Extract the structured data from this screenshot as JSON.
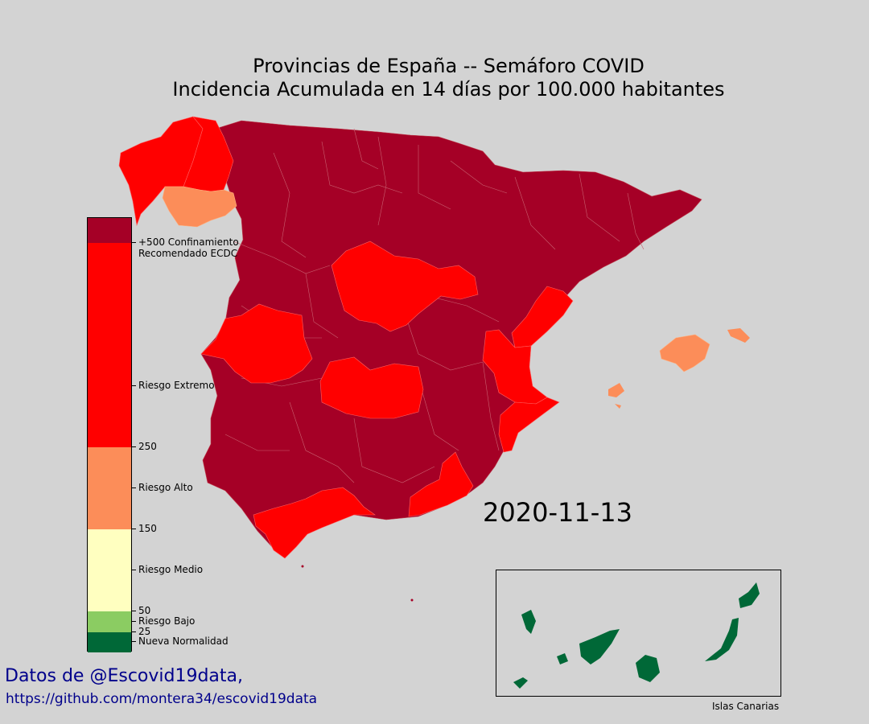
{
  "title": {
    "line1": "Provincias de España -- Semáforo COVID",
    "line2": "Incidencia Acumulada en 14 días por 100.000 habitantes"
  },
  "date": "2020-11-13",
  "credits": {
    "line1": "Datos de @Escovid19data,",
    "line2": "https://github.com/montera34/escovid19data"
  },
  "inset_label": "Islas Canarias",
  "colors": {
    "background": "#d3d3d3",
    "nueva_normalidad": "#006837",
    "riesgo_bajo": "#8bcc62",
    "riesgo_medio": "#ffffc0",
    "riesgo_alto": "#fc8d59",
    "riesgo_extremo": "#ff0000",
    "confinamiento": "#a50026",
    "text_blue": "#00008b"
  },
  "colorbar": {
    "segments": [
      {
        "from": 0,
        "to": 25,
        "color": "#006837"
      },
      {
        "from": 25,
        "to": 50,
        "color": "#8bcc62"
      },
      {
        "from": 50,
        "to": 150,
        "color": "#ffffc0"
      },
      {
        "from": 150,
        "to": 250,
        "color": "#fc8d59"
      },
      {
        "from": 250,
        "to": 500,
        "color": "#ff0000"
      },
      {
        "from": 500,
        "to": 530,
        "color": "#a50026"
      }
    ],
    "max": 530,
    "ticks": [
      {
        "value": 12.5,
        "label": "Nueva Normalidad"
      },
      {
        "value": 25,
        "label": "25"
      },
      {
        "value": 37.5,
        "label": "Riesgo Bajo"
      },
      {
        "value": 50,
        "label": "50"
      },
      {
        "value": 100,
        "label": "Riesgo Medio"
      },
      {
        "value": 150,
        "label": "150"
      },
      {
        "value": 200,
        "label": "Riesgo Alto"
      },
      {
        "value": 250,
        "label": "250"
      },
      {
        "value": 325,
        "label": "Riesgo Extremo"
      },
      {
        "value": 500,
        "label": "+500 Confinamiento\nRecomendado ECDC"
      }
    ]
  }
}
